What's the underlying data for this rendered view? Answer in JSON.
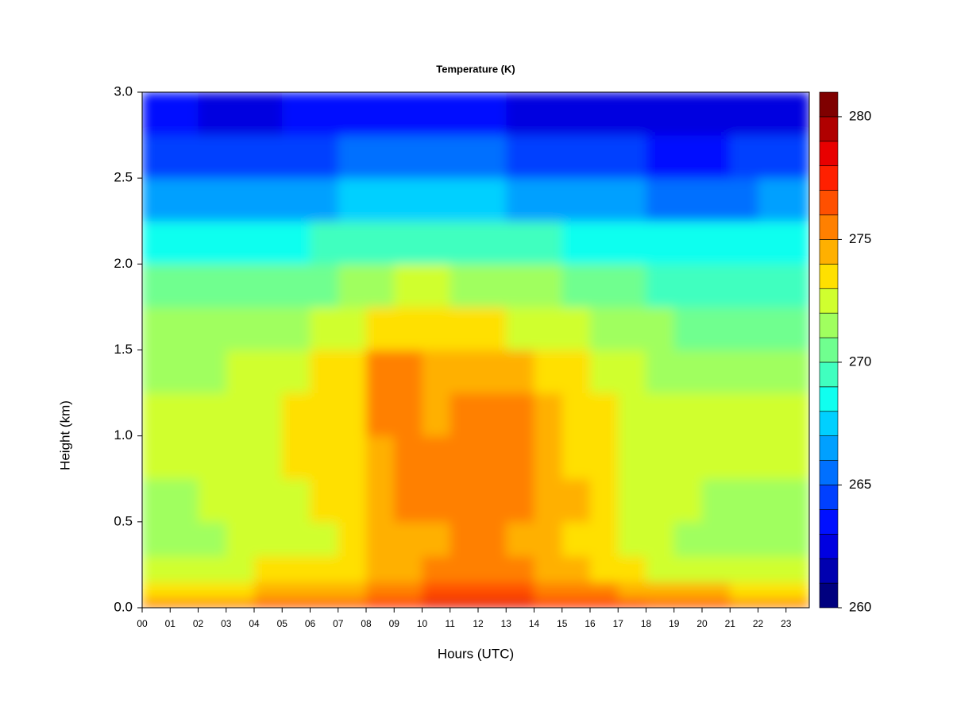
{
  "chart_data": {
    "type": "contour",
    "title": "Temperature (K)",
    "x_label": "Hours (UTC)",
    "y_label": "Height (km)",
    "xlim": [
      0,
      23.83
    ],
    "ylim": [
      0,
      3
    ],
    "xticks": [
      {
        "value": 0,
        "label": "00"
      },
      {
        "value": 1,
        "label": "01"
      },
      {
        "value": 2,
        "label": "02"
      },
      {
        "value": 3,
        "label": "03"
      },
      {
        "value": 4,
        "label": "04"
      },
      {
        "value": 5,
        "label": "05"
      },
      {
        "value": 6,
        "label": "06"
      },
      {
        "value": 7,
        "label": "07"
      },
      {
        "value": 8,
        "label": "08"
      },
      {
        "value": 9,
        "label": "09"
      },
      10,
      11,
      12,
      13,
      14,
      15,
      16,
      17,
      18,
      19,
      20,
      21,
      22,
      23
    ],
    "yticks": [
      {
        "value": 0,
        "label": "0.0"
      },
      0.5,
      {
        "value": 1,
        "label": "1.0"
      },
      1.5,
      {
        "value": 2,
        "label": "2.0"
      },
      2.5,
      {
        "value": 3,
        "label": "3.0"
      }
    ],
    "levels": [
      260,
      261,
      262,
      263,
      264,
      265,
      266,
      267,
      268,
      269,
      270,
      271,
      272,
      273,
      274,
      275,
      276,
      277,
      278,
      279,
      280,
      281
    ],
    "colors": [
      "#00007f",
      "#0000b0",
      "#0000e0",
      "#0010ff",
      "#0040ff",
      "#0070ff",
      "#00a0ff",
      "#00d0ff",
      "#10ffef",
      "#40ffbf",
      "#70ff8f",
      "#a0ff5f",
      "#d0ff2f",
      "#ffe000",
      "#ffb000",
      "#ff8000",
      "#ff5000",
      "#ff2000",
      "#e80000",
      "#b00000",
      "#7f0000"
    ],
    "cticks": [
      260,
      265,
      270,
      275,
      280
    ],
    "x": [
      0,
      1,
      2,
      3,
      4,
      5,
      6,
      7,
      8,
      9,
      10,
      11,
      12,
      13,
      14,
      15,
      16,
      17,
      18,
      19,
      20,
      21,
      22,
      23
    ],
    "y": [
      0,
      0.05,
      0.15,
      0.3,
      0.5,
      0.75,
      1.0,
      1.25,
      1.5,
      1.75,
      2.0,
      2.25,
      2.5,
      2.75
    ],
    "z": [
      [
        275,
        275,
        275.5,
        275.5,
        276,
        276,
        276,
        276.5,
        277,
        277.5,
        278,
        278.5,
        278.5,
        278,
        277.5,
        277.5,
        277,
        277,
        276.5,
        276,
        276,
        275.5,
        275.5,
        275
      ],
      [
        273.5,
        273.5,
        273.5,
        273.5,
        274,
        274,
        274,
        274.5,
        275,
        275.5,
        276,
        276.5,
        276.5,
        276,
        275.5,
        275,
        275,
        274.5,
        274,
        274,
        274,
        273.5,
        273.5,
        273.5
      ],
      [
        272.5,
        272.5,
        272.5,
        272.5,
        273,
        273,
        273,
        273.5,
        274,
        274.5,
        275,
        275.5,
        275.5,
        275,
        274.5,
        274,
        273.5,
        273,
        272.5,
        272.5,
        272.5,
        272.5,
        272.5,
        272.5
      ],
      [
        271.5,
        271.5,
        271.5,
        272,
        272,
        272.5,
        272.5,
        273,
        274,
        274.5,
        274.5,
        275,
        275,
        274.5,
        274,
        273.5,
        273.5,
        272.5,
        272,
        271.5,
        271.5,
        271.5,
        271.5,
        271.5
      ],
      [
        271.5,
        271.5,
        272,
        272,
        272.5,
        272.5,
        273,
        273.5,
        274.5,
        275,
        275,
        275.5,
        275.5,
        275,
        274.5,
        274,
        273.5,
        272.5,
        272,
        272,
        271.5,
        271.5,
        271.5,
        271.5
      ],
      [
        272,
        272,
        272,
        272.5,
        272.5,
        273,
        273,
        273.5,
        274.5,
        275,
        275,
        275.5,
        275.5,
        275,
        274.5,
        273.5,
        273,
        272.5,
        272,
        272,
        272,
        272,
        272,
        272
      ],
      [
        272,
        272,
        272,
        272.5,
        272.5,
        273,
        273,
        273.5,
        275,
        275,
        274.5,
        275,
        275.5,
        275,
        274.5,
        273.5,
        273,
        272.5,
        272,
        272,
        272,
        272,
        272,
        272
      ],
      [
        271.5,
        271.5,
        271.5,
        272,
        272,
        272.5,
        273,
        273.5,
        275,
        275,
        274.5,
        274.5,
        274.5,
        274,
        273.5,
        273,
        272.5,
        272,
        271.5,
        271.5,
        271.5,
        271.5,
        271.5,
        271.5
      ],
      [
        271,
        271,
        271,
        271,
        271.5,
        271.5,
        272,
        272.5,
        273,
        273.5,
        273.5,
        273,
        273,
        272.5,
        272.5,
        272,
        271.5,
        271,
        271,
        270.5,
        270.5,
        270.5,
        270.5,
        270.5
      ],
      [
        270,
        270,
        270,
        270,
        270,
        270.5,
        270.5,
        271,
        271.5,
        272,
        272,
        271.5,
        271.5,
        271,
        271,
        270.5,
        270,
        270,
        269.5,
        269.5,
        269.5,
        269.5,
        269.5,
        269.5
      ],
      [
        268.5,
        268.5,
        268.5,
        268.5,
        268.5,
        268.5,
        269,
        269,
        269.5,
        269.5,
        269.5,
        269.5,
        269,
        269,
        269,
        268.5,
        268.5,
        268,
        268,
        268,
        268,
        268,
        268,
        268
      ],
      [
        266.5,
        266.5,
        266,
        266,
        266,
        266.5,
        266.5,
        267,
        267,
        267.5,
        267.5,
        267,
        267,
        266.5,
        266.5,
        266,
        266,
        266,
        265.5,
        265.5,
        265.5,
        265.5,
        266,
        266
      ],
      [
        264.5,
        264.5,
        264,
        264,
        264,
        264.5,
        264.5,
        265,
        265,
        265.5,
        265.5,
        265,
        265,
        264.5,
        264,
        264,
        264,
        264,
        263.5,
        263.5,
        263.5,
        264,
        264,
        264
      ],
      [
        263,
        263,
        262.5,
        262.5,
        262.5,
        263,
        263,
        263,
        263.5,
        263.5,
        263.5,
        263,
        263,
        262.5,
        262.5,
        262.5,
        262.5,
        262.5,
        262.5,
        262,
        262,
        262.5,
        262.5,
        262.5
      ]
    ]
  }
}
